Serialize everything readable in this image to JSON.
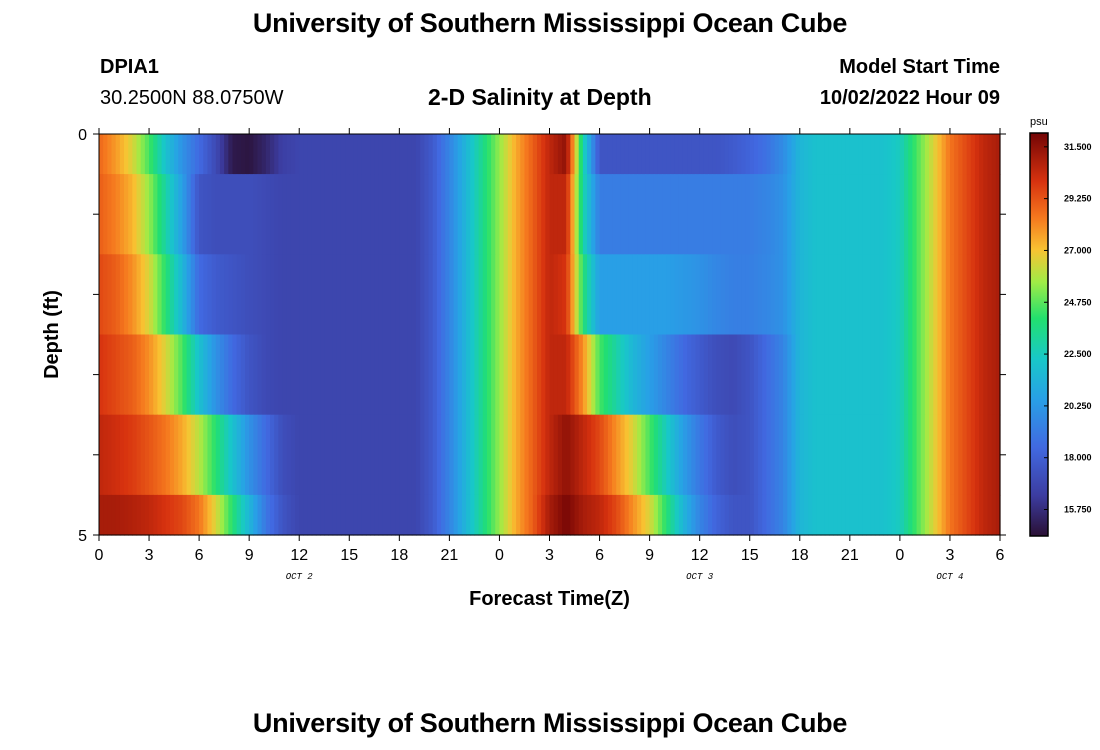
{
  "header": {
    "title": "University of Southern Mississippi Ocean Cube",
    "station_id": "DPIA1",
    "station_coords": "30.2500N  88.0750W",
    "chart_title": "2-D Salinity at Depth",
    "model_start_label": "Model Start Time",
    "model_start_value": "10/02/2022 Hour 09"
  },
  "footer": {
    "title": "University of Southern Mississippi Ocean Cube"
  },
  "chart_data": {
    "type": "heatmap",
    "title": "2-D Salinity at Depth",
    "xlabel": "Forecast Time(Z)",
    "ylabel": "Depth (ft)",
    "x_tick_labels": [
      "0",
      "3",
      "6",
      "9",
      "12",
      "15",
      "18",
      "21",
      "0",
      "3",
      "6",
      "9",
      "12",
      "15",
      "18",
      "21",
      "0",
      "3",
      "6"
    ],
    "date_labels": [
      {
        "label": "OCT 2",
        "tick_index": 4
      },
      {
        "label": "OCT 3",
        "tick_index": 12
      },
      {
        "label": "OCT 4",
        "tick_index": 17
      }
    ],
    "y_tick_labels": [
      {
        "label": "0",
        "depth": 0
      },
      {
        "label": "5",
        "depth": 5
      }
    ],
    "ylim": [
      0,
      5
    ],
    "xlim_hours": [
      0,
      54
    ],
    "colorbar": {
      "unit": "psu",
      "ticks": [
        "31.500",
        "29.250",
        "27.000",
        "24.750",
        "22.500",
        "20.250",
        "18.000",
        "15.750"
      ],
      "range": [
        14.6,
        32.1
      ]
    },
    "rows": [
      {
        "depth_range": [
          0,
          0.5
        ],
        "x_hours": [
          0,
          1,
          2,
          3,
          4,
          5,
          6,
          7,
          8,
          9,
          10,
          11,
          12,
          13,
          14,
          15,
          16,
          17,
          18,
          19,
          20,
          21,
          22,
          23,
          24,
          25,
          26,
          27,
          28,
          29,
          30,
          31,
          32,
          33,
          34,
          35,
          36,
          37,
          38,
          39,
          40,
          41,
          42,
          43,
          44,
          45,
          46,
          47,
          48,
          49,
          50,
          51,
          52,
          53,
          54
        ],
        "values": [
          28.8,
          27.8,
          26.5,
          24.5,
          22.0,
          20.0,
          18.5,
          17.0,
          15.0,
          14.8,
          15.5,
          16.5,
          16.8,
          16.8,
          16.8,
          16.8,
          16.8,
          16.8,
          16.8,
          16.8,
          17.8,
          19.5,
          21.5,
          23.5,
          25.5,
          27.5,
          29.0,
          30.5,
          31.5,
          23.0,
          17.5,
          17.5,
          17.5,
          17.5,
          17.5,
          17.5,
          17.5,
          17.5,
          17.8,
          18.2,
          18.8,
          19.8,
          21.5,
          22.0,
          22.0,
          22.0,
          22.0,
          22.0,
          22.5,
          24.5,
          26.5,
          28.5,
          29.5,
          30.5,
          31.0
        ]
      },
      {
        "depth_range": [
          0.5,
          1.5
        ],
        "x_hours": [
          0,
          1,
          2,
          3,
          4,
          5,
          6,
          7,
          8,
          9,
          10,
          11,
          12,
          13,
          14,
          15,
          16,
          17,
          18,
          19,
          20,
          21,
          22,
          23,
          24,
          25,
          26,
          27,
          28,
          29,
          30,
          31,
          32,
          33,
          34,
          35,
          36,
          37,
          38,
          39,
          40,
          41,
          42,
          43,
          44,
          45,
          46,
          47,
          48,
          49,
          50,
          51,
          52,
          53,
          54
        ],
        "values": [
          29.0,
          28.3,
          27.3,
          25.5,
          23.0,
          20.5,
          17.5,
          17.2,
          17.2,
          17.2,
          17.0,
          16.8,
          16.8,
          16.8,
          16.8,
          16.8,
          16.8,
          16.8,
          16.8,
          16.8,
          17.8,
          19.5,
          21.5,
          23.5,
          25.5,
          27.5,
          29.0,
          30.5,
          30.5,
          23.0,
          19.2,
          19.2,
          19.2,
          19.2,
          19.2,
          19.2,
          19.2,
          19.2,
          19.2,
          19.2,
          19.5,
          20.0,
          21.5,
          22.0,
          22.0,
          22.0,
          22.0,
          22.0,
          22.5,
          24.5,
          26.5,
          28.5,
          29.5,
          30.5,
          31.0
        ]
      },
      {
        "depth_range": [
          1.5,
          2.5
        ],
        "x_hours": [
          0,
          1,
          2,
          3,
          4,
          5,
          6,
          7,
          8,
          9,
          10,
          11,
          12,
          13,
          14,
          15,
          16,
          17,
          18,
          19,
          20,
          21,
          22,
          23,
          24,
          25,
          26,
          27,
          28,
          29,
          30,
          31,
          32,
          33,
          34,
          35,
          36,
          37,
          38,
          39,
          40,
          41,
          42,
          43,
          44,
          45,
          46,
          47,
          48,
          49,
          50,
          51,
          52,
          53,
          54
        ],
        "values": [
          29.5,
          29.0,
          28.0,
          26.5,
          24.0,
          21.5,
          18.5,
          17.8,
          17.5,
          17.2,
          17.0,
          16.8,
          16.8,
          16.8,
          16.8,
          16.8,
          16.8,
          16.8,
          16.8,
          16.8,
          17.8,
          19.5,
          21.5,
          23.5,
          25.5,
          27.5,
          29.0,
          30.5,
          30.0,
          24.0,
          20.5,
          20.5,
          20.5,
          20.5,
          20.5,
          20.3,
          20.0,
          19.6,
          19.3,
          19.3,
          19.6,
          20.0,
          21.5,
          22.0,
          22.0,
          22.0,
          22.0,
          22.0,
          22.5,
          24.5,
          26.5,
          28.5,
          29.5,
          30.5,
          31.0
        ]
      },
      {
        "depth_range": [
          2.5,
          3.5
        ],
        "x_hours": [
          0,
          1,
          2,
          3,
          4,
          5,
          6,
          7,
          8,
          9,
          10,
          11,
          12,
          13,
          14,
          15,
          16,
          17,
          18,
          19,
          20,
          21,
          22,
          23,
          24,
          25,
          26,
          27,
          28,
          29,
          30,
          31,
          32,
          33,
          34,
          35,
          36,
          37,
          38,
          39,
          40,
          41,
          42,
          43,
          44,
          45,
          46,
          47,
          48,
          49,
          50,
          51,
          52,
          53,
          54
        ],
        "values": [
          30.0,
          29.5,
          29.0,
          28.0,
          26.5,
          24.5,
          22.0,
          20.0,
          18.5,
          17.5,
          17.0,
          16.8,
          16.8,
          16.8,
          16.8,
          16.8,
          16.8,
          16.8,
          16.8,
          16.8,
          17.8,
          19.5,
          21.5,
          23.5,
          25.5,
          27.5,
          29.0,
          30.5,
          30.5,
          28.0,
          24.5,
          23.0,
          21.5,
          20.5,
          19.5,
          18.5,
          17.8,
          17.2,
          17.0,
          17.5,
          18.5,
          19.5,
          21.5,
          22.0,
          22.0,
          22.0,
          22.0,
          22.0,
          22.5,
          24.5,
          26.5,
          28.5,
          29.5,
          30.5,
          31.0
        ]
      },
      {
        "depth_range": [
          3.5,
          4.5
        ],
        "x_hours": [
          0,
          1,
          2,
          3,
          4,
          5,
          6,
          7,
          8,
          9,
          10,
          11,
          12,
          13,
          14,
          15,
          16,
          17,
          18,
          19,
          20,
          21,
          22,
          23,
          24,
          25,
          26,
          27,
          28,
          29,
          30,
          31,
          32,
          33,
          34,
          35,
          36,
          37,
          38,
          39,
          40,
          41,
          42,
          43,
          44,
          45,
          46,
          47,
          48,
          49,
          50,
          51,
          52,
          53,
          54
        ],
        "values": [
          30.5,
          30.2,
          29.8,
          29.2,
          28.5,
          27.5,
          26.0,
          24.0,
          22.0,
          20.0,
          18.5,
          17.2,
          16.8,
          16.8,
          16.8,
          16.8,
          16.8,
          16.8,
          16.8,
          16.8,
          17.8,
          19.5,
          21.5,
          23.5,
          25.5,
          27.5,
          29.0,
          30.5,
          31.5,
          30.5,
          29.5,
          28.0,
          26.5,
          24.5,
          22.5,
          20.5,
          19.0,
          17.8,
          17.2,
          17.5,
          18.5,
          19.5,
          21.5,
          22.0,
          22.0,
          22.0,
          22.0,
          22.0,
          22.5,
          24.5,
          26.5,
          28.5,
          29.5,
          30.5,
          31.0
        ]
      },
      {
        "depth_range": [
          4.5,
          5.0
        ],
        "x_hours": [
          0,
          1,
          2,
          3,
          4,
          5,
          6,
          7,
          8,
          9,
          10,
          11,
          12,
          13,
          14,
          15,
          16,
          17,
          18,
          19,
          20,
          21,
          22,
          23,
          24,
          25,
          26,
          27,
          28,
          29,
          30,
          31,
          32,
          33,
          34,
          35,
          36,
          37,
          38,
          39,
          40,
          41,
          42,
          43,
          44,
          45,
          46,
          47,
          48,
          49,
          50,
          51,
          52,
          53,
          54
        ],
        "values": [
          31.0,
          31.0,
          30.8,
          30.5,
          30.0,
          29.5,
          28.5,
          26.5,
          24.0,
          21.5,
          19.0,
          17.5,
          16.8,
          16.8,
          16.8,
          16.8,
          16.8,
          16.8,
          16.8,
          16.8,
          17.8,
          19.5,
          21.5,
          23.5,
          25.5,
          27.5,
          29.0,
          31.0,
          32.0,
          31.0,
          30.5,
          29.5,
          28.0,
          26.5,
          24.0,
          21.5,
          19.5,
          18.2,
          17.5,
          17.5,
          18.5,
          19.5,
          21.5,
          22.0,
          22.0,
          22.0,
          22.0,
          22.0,
          22.5,
          24.5,
          26.5,
          28.5,
          29.5,
          30.5,
          31.0
        ]
      }
    ]
  }
}
